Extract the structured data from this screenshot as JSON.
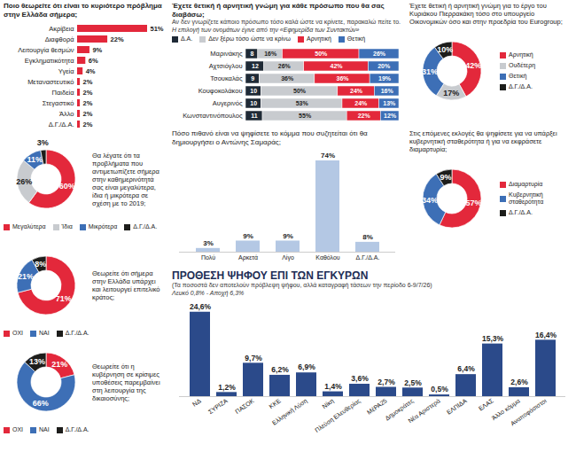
{
  "chart_data": [
    {
      "type": "bar",
      "orientation": "horizontal",
      "title": "Ποιο θεωρείτε ότι είναι το κυριότερο πρόβλημα στην Ελλάδα σήμερα;",
      "categories": [
        "Ακρίβεια",
        "Διαφθορά",
        "Λειτουργία θεσμών",
        "Εγκληματικότητα",
        "Υγεία",
        "Μεταναστευτικό",
        "Παιδεία",
        "Στεγαστικό",
        "Άλλο",
        "Δ.Γ./Δ.Α."
      ],
      "values": [
        51,
        22,
        9,
        6,
        4,
        2,
        2,
        2,
        2,
        2
      ],
      "value_labels": [
        "51%",
        "22%",
        "9%",
        "6%",
        "4%",
        "2%",
        "2%",
        "2%",
        "2%",
        "2%"
      ],
      "color": "#e3283b",
      "xlim": [
        0,
        51
      ],
      "data_labels": true,
      "tick_labels": "y"
    },
    {
      "type": "pie",
      "title": "Θα λέγατε ότι τα προβλήματα που αντιμετωπίζετε σήμερα στην καθημερινότητά σας είναι μεγαλύτερα, ίδια ή μικρότερα σε σχέση με το 2019;",
      "categories": [
        "Μεγαλύτερα",
        "Ίδια",
        "Μικρότερα",
        "Δ.Γ./Δ.Α."
      ],
      "values": [
        60,
        26,
        11,
        3
      ],
      "value_labels": [
        "60%",
        "26%",
        "11%",
        "3%"
      ],
      "colors": [
        "#e3283b",
        "#c8cbcf",
        "#3d6fb6",
        "#1d1d1b"
      ],
      "data_labels": true,
      "legend": "bottom"
    },
    {
      "type": "pie",
      "title": "Θεωρείτε ότι σήμερα στην Ελλάδα υπάρχει και λειτουργεί επιτελικό κράτος;",
      "categories": [
        "ΟΧΙ",
        "ΝΑΙ",
        "Δ.Γ./Δ.Α."
      ],
      "values": [
        71,
        21,
        8
      ],
      "value_labels": [
        "71%",
        "21%",
        "8%"
      ],
      "colors": [
        "#e3283b",
        "#3d6fb6",
        "#1d1d1b"
      ],
      "data_labels": true,
      "legend": "bottom"
    },
    {
      "type": "pie",
      "title": "Θεωρείτε ότι η κυβέρνηση σε κρίσιμες υποθέσεις παρεμβαίνει στη λειτουργία της δικαιοσύνης;",
      "categories": [
        "ΟΧΙ",
        "ΝΑΙ",
        "Δ.Γ./Δ.Α."
      ],
      "values": [
        21,
        66,
        13
      ],
      "value_labels": [
        "21%",
        "66%",
        "13%"
      ],
      "colors": [
        "#e3283b",
        "#3d6fb6",
        "#1d1d1b"
      ],
      "data_labels": true,
      "legend": "bottom"
    },
    {
      "type": "bar",
      "orientation": "horizontal",
      "stacked": true,
      "title": "Έχετε θετική ή αρνητική γνώμη για κάθε πρόσωπο που θα σας διαβάσω;",
      "subtitle": "Αν δεν γνωρίζετε κάποιο πρόσωπο τόσο καλά ώστε να κρίνετε, παρακαλώ πείτε το.",
      "annotations": [
        "Η επιλογή των ονομάτων έγινε από την «Εφημερίδα των Συντακτών»"
      ],
      "categories": [
        "Μαρινάκης",
        "Αχτσιόγλου",
        "Τσουκαλάς",
        "Κουφοκολάκου",
        "Αυγερινός",
        "Κωνσταντινόπουλος"
      ],
      "series": [
        {
          "name": "Δ.Α.",
          "color": "#1f2a36",
          "values": [
            8,
            12,
            9,
            10,
            10,
            11
          ]
        },
        {
          "name": "Δεν ξέρω τόσο ώστε να κρίνω",
          "color": "#c8cbcf",
          "values": [
            16,
            26,
            36,
            50,
            53,
            55
          ],
          "value_labels": [
            "16%",
            "26%",
            "36%",
            "50%",
            "53%",
            "55%"
          ]
        },
        {
          "name": "Αρνητική",
          "color": "#e3283b",
          "values": [
            50,
            42,
            36,
            24,
            24,
            22
          ],
          "value_labels": [
            "50%",
            "42%",
            "36%",
            "24%",
            "24%",
            "22%"
          ]
        },
        {
          "name": "Θετική",
          "color": "#3d6fb6",
          "values": [
            26,
            20,
            19,
            16,
            13,
            12
          ],
          "value_labels": [
            "26%",
            "20%",
            "19%",
            "16%",
            "13%",
            "12%"
          ]
        }
      ],
      "xlim": [
        0,
        100
      ],
      "data_labels": true,
      "tick_labels": "y",
      "legend": "top"
    },
    {
      "type": "pie",
      "title": "Έχετε θετική ή αρνητική γνώμη για το έργο του Κυριάκου Πιερρακάκη τόσο στο υπουργείο Οικονομικών όσο και στην προεδρία του Eurogroup;",
      "categories": [
        "Αρνητική",
        "Ουδέτερη",
        "Θετική",
        "Δ.Γ./Δ.Α."
      ],
      "values": [
        42,
        17,
        31,
        10
      ],
      "value_labels": [
        "42%",
        "17%",
        "31%",
        "10%"
      ],
      "colors": [
        "#e3283b",
        "#c8cbcf",
        "#3d6fb6",
        "#1d1d1b"
      ],
      "data_labels": true,
      "legend": "right"
    },
    {
      "type": "bar",
      "title": "Πόσο πιθανό είναι να ψηφίσετε το κόμμα που συζητείται ότι θα δημιουργήσει ο Αντώνης Σαμαράς;",
      "categories": [
        "Πολύ",
        "Αρκετά",
        "Λίγο",
        "Καθόλου",
        "Δ.Γ./Δ.Α."
      ],
      "values": [
        3,
        9,
        9,
        74,
        8
      ],
      "value_labels": [
        "3%",
        "9%",
        "9%",
        "74%",
        "8%"
      ],
      "color": "#b4c8e4",
      "ylim": [
        0,
        74
      ],
      "data_labels": true,
      "tick_labels": "x"
    },
    {
      "type": "pie",
      "title": "Στις επόμενες εκλογές θα ψηφίσετε για να υπάρξει κυβερνητική σταθερότητα ή για να εκφράσετε διαμαρτυρία;",
      "categories": [
        "Διαμαρτυρία",
        "Κυβερνητική σταθερότητα",
        "Δ.Γ./Δ.Α."
      ],
      "values": [
        57,
        34,
        9
      ],
      "value_labels": [
        "57%",
        "34%",
        "9%"
      ],
      "colors": [
        "#e3283b",
        "#3d6fb6",
        "#1d1d1b"
      ],
      "data_labels": true,
      "legend": "right"
    },
    {
      "type": "bar",
      "title": "ΠΡΟΘΕΣΗ ΨΗΦΟΥ ΕΠΙ ΤΩΝ ΕΓΚΥΡΩΝ",
      "subtitle": "(Τα ποσοστά δεν αποτελούν πρόβλεψη ψήφου, αλλά καταγραφή τάσεων την περίοδο 6-9/7/26)",
      "annotations": [
        "Λευκό 0,8% - Αποχή 6,3%"
      ],
      "categories": [
        "ΝΔ",
        "ΣΥΡΙΖΑ",
        "ΠΑΣΟΚ",
        "ΚΚΕ",
        "Ελληνική Λύση",
        "Νίκη",
        "Πλεύση Ελευθερίας",
        "ΜέΡΑ25",
        "Δημοκράτες",
        "Νέα Αριστερά",
        "ΕΛΠΙΔΑ",
        "ΕΛΑΣ",
        "Άλλο κόμμα",
        "Αναποφάσιστοι"
      ],
      "values": [
        24.6,
        1.2,
        9.7,
        6.2,
        6.9,
        1.4,
        3.6,
        2.7,
        2.5,
        0.5,
        6.4,
        15.3,
        2.6,
        16.4
      ],
      "value_labels": [
        "24,6%",
        "1,2%",
        "9,7%",
        "6,2%",
        "6,9%",
        "1,4%",
        "3,6%",
        "2,7%",
        "2,5%",
        "0,5%",
        "6,4%",
        "15,3%",
        "2,6%",
        "16,4%"
      ],
      "color": "#2b4a8a",
      "ylim": [
        0,
        24.6
      ],
      "data_labels": true,
      "tick_labels": "x"
    }
  ]
}
